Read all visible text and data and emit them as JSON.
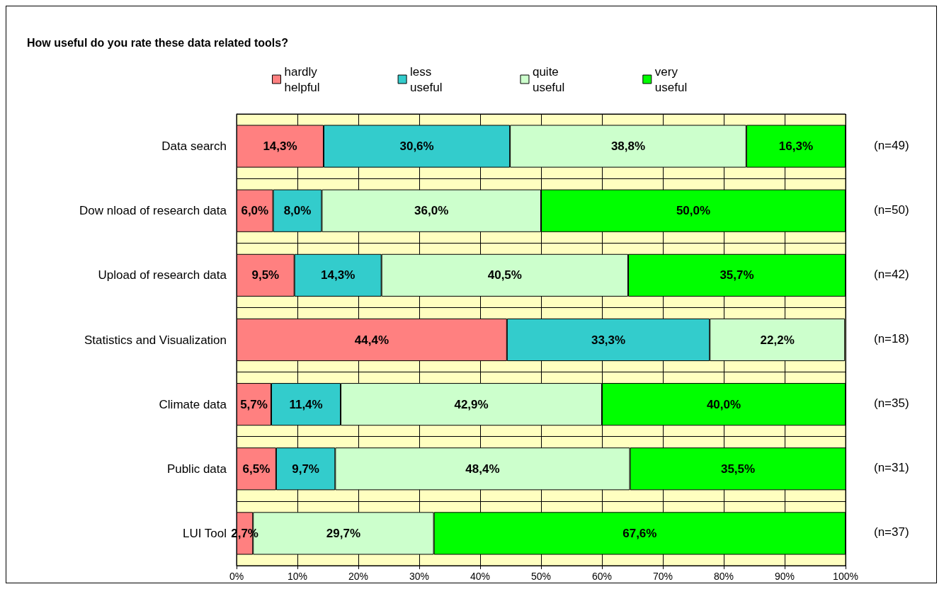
{
  "chart_data": {
    "type": "bar",
    "orientation": "horizontal",
    "stacked": true,
    "title": "How useful do you rate these data related tools?",
    "categories": [
      "Data search",
      "Dow nload of research data",
      "Upload of research data",
      "Statistics and Visualization",
      "Climate data",
      "Public data",
      "LUI Tool"
    ],
    "series": [
      {
        "name": "hardly helpful",
        "color": "#ff8080",
        "values": [
          14.3,
          6.0,
          9.5,
          44.4,
          5.7,
          6.5,
          2.7
        ],
        "value_labels": [
          "14,3%",
          "6,0%",
          "9,5%",
          "44,4%",
          "5,7%",
          "6,5%",
          "2,7%"
        ]
      },
      {
        "name": "less useful",
        "color": "#33cccc",
        "values": [
          30.6,
          8.0,
          14.3,
          33.3,
          11.4,
          9.7,
          null
        ],
        "value_labels": [
          "30,6%",
          "8,0%",
          "14,3%",
          "33,3%",
          "11,4%",
          "9,7%",
          null
        ]
      },
      {
        "name": "quite useful",
        "color": "#ccffcc",
        "values": [
          38.8,
          36.0,
          40.5,
          22.2,
          42.9,
          48.4,
          29.7
        ],
        "value_labels": [
          "38,8%",
          "36,0%",
          "40,5%",
          "22,2%",
          "42,9%",
          "48,4%",
          "29,7%"
        ]
      },
      {
        "name": "very useful",
        "color": "#00ff00",
        "values": [
          16.3,
          50.0,
          35.7,
          null,
          40.0,
          35.5,
          67.6
        ],
        "value_labels": [
          "16,3%",
          "50,0%",
          "35,7%",
          null,
          "40,0%",
          "35,5%",
          "67,6%"
        ]
      }
    ],
    "xlim": [
      0,
      100
    ],
    "xticks": [
      {
        "value": 0,
        "label": "0%"
      },
      {
        "value": 10,
        "label": "10%"
      },
      {
        "value": 20,
        "label": "20%"
      },
      {
        "value": 30,
        "label": "30%"
      },
      {
        "value": 40,
        "label": "40%"
      },
      {
        "value": 50,
        "label": "50%"
      },
      {
        "value": 60,
        "label": "60%"
      },
      {
        "value": 70,
        "label": "70%"
      },
      {
        "value": 80,
        "label": "80%"
      },
      {
        "value": 90,
        "label": "90%"
      },
      {
        "value": 100,
        "label": "100%"
      }
    ],
    "grid": true,
    "legend": "top",
    "annotations": [
      "(n=49)",
      "(n=50)",
      "(n=42)",
      "(n=18)",
      "(n=35)",
      "(n=31)",
      "(n=37)"
    ]
  }
}
